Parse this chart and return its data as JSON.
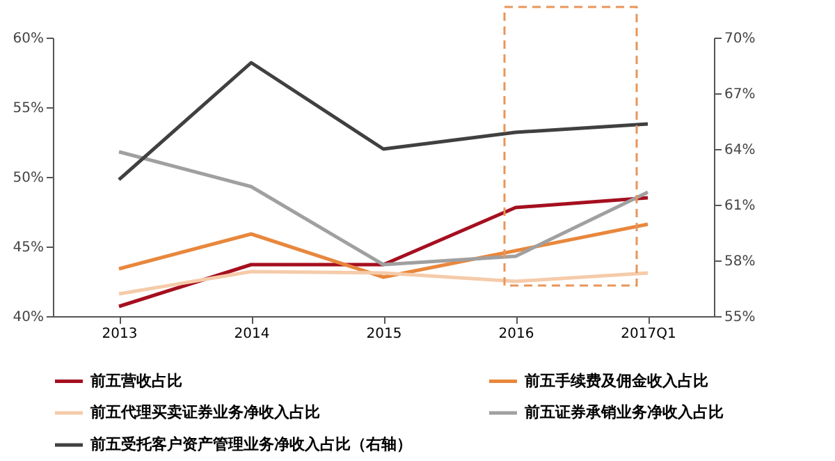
{
  "chart_data": {
    "type": "line",
    "categories": [
      "2013",
      "2014",
      "2015",
      "2016",
      "2017Q1"
    ],
    "ylim": [
      40,
      60
    ],
    "yticks": [
      {
        "value": 40,
        "label": "40%"
      },
      {
        "value": 45,
        "label": "45%"
      },
      {
        "value": 50,
        "label": "50%"
      },
      {
        "value": 55,
        "label": "55%"
      },
      {
        "value": 60,
        "label": "60%"
      }
    ],
    "y2lim": [
      55,
      70
    ],
    "y2ticks": [
      {
        "value": 55,
        "label": "55%"
      },
      {
        "value": 58,
        "label": "58%"
      },
      {
        "value": 61,
        "label": "61%"
      },
      {
        "value": 64,
        "label": "64%"
      },
      {
        "value": 67,
        "label": "67%"
      },
      {
        "value": 70,
        "label": "70%"
      }
    ],
    "legend": "bottom",
    "marker": "none",
    "line_style": "solid",
    "series": [
      {
        "name": "前五营收占比",
        "color": "#a50f1f",
        "values": [
          40.7,
          43.7,
          43.7,
          47.8,
          48.5
        ]
      },
      {
        "name": "前五手续费及佣金收入占比",
        "color": "#e8873c",
        "values": [
          43.4,
          45.9,
          42.8,
          44.7,
          46.6
        ]
      },
      {
        "name": "前五代理买卖证券业务净收入占比",
        "color": "#f5cbaa",
        "values": [
          41.6,
          43.2,
          43.1,
          42.5,
          43.1
        ]
      },
      {
        "name": "前五证券承销业务净收入占比",
        "color": "#a0a0a0",
        "values": [
          51.8,
          49.3,
          43.7,
          44.3,
          48.9
        ]
      },
      {
        "name": "前五受托客户资产管理业务净收入占比（右轴）",
        "color": "#404040",
        "values": [
          62.35,
          68.65,
          64.0,
          64.9,
          65.35
        ],
        "axis": "y2"
      }
    ]
  }
}
